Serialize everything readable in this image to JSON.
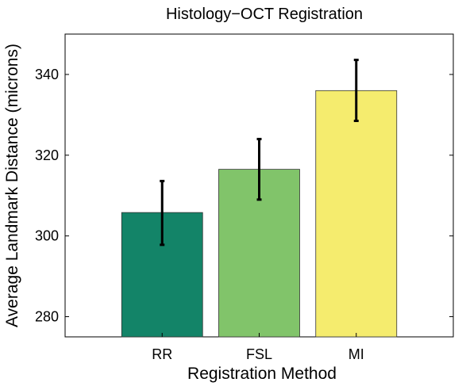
{
  "chart_data": {
    "type": "bar",
    "title": "Histology−OCT Registration",
    "xlabel": "Registration Method",
    "ylabel": "Average Landmark Distance (microns)",
    "categories": [
      "RR",
      "FSL",
      "MI"
    ],
    "values": [
      305.8,
      316.5,
      336.0
    ],
    "error_low": [
      297.8,
      309.0,
      328.5
    ],
    "error_high": [
      313.6,
      324.0,
      343.6
    ],
    "colors": [
      "#138468",
      "#81c46a",
      "#f5ec6e"
    ],
    "ylim": [
      275,
      350
    ],
    "yticks": [
      280,
      300,
      320,
      340
    ],
    "grid": false,
    "legend": "none"
  }
}
